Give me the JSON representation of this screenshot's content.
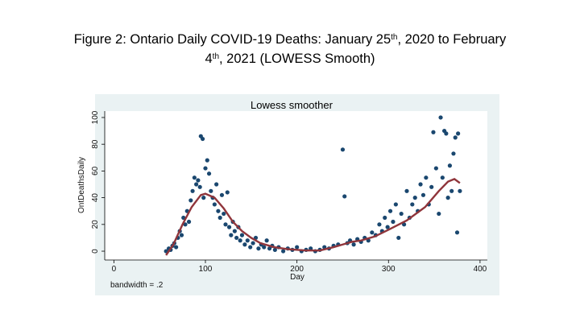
{
  "slide_title": {
    "lines": [
      [
        {
          "text": "Figure 2: Ontario Daily COVID-19 Deaths: January 25",
          "sup": false
        },
        {
          "text": "th",
          "sup": true
        },
        {
          "text": ", 2020 to February",
          "sup": false
        }
      ],
      [
        {
          "text": "4",
          "sup": false
        },
        {
          "text": "th",
          "sup": true
        },
        {
          "text": ", 2021 (LOWESS Smooth)",
          "sup": false
        }
      ]
    ]
  },
  "chart_data": {
    "type": "scatter",
    "title": "Lowess smoother",
    "xlabel": "Day",
    "ylabel": "OntDeathsDaily",
    "note": "bandwidth = .2",
    "color": "#1a476f",
    "x": [
      57,
      60,
      62,
      64,
      66,
      68,
      70,
      72,
      74,
      76,
      78,
      80,
      82,
      84,
      86,
      88,
      90,
      92,
      94,
      95,
      97,
      98,
      100,
      102,
      104,
      106,
      108,
      110,
      112,
      114,
      116,
      118,
      120,
      122,
      124,
      126,
      128,
      130,
      132,
      134,
      136,
      138,
      140,
      143,
      146,
      149,
      152,
      155,
      158,
      161,
      164,
      167,
      170,
      173,
      176,
      180,
      185,
      190,
      195,
      200,
      205,
      210,
      215,
      220,
      225,
      230,
      235,
      240,
      245,
      250,
      252,
      255,
      258,
      262,
      266,
      270,
      274,
      278,
      282,
      286,
      290,
      293,
      296,
      299,
      302,
      305,
      308,
      311,
      314,
      317,
      320,
      323,
      326,
      329,
      332,
      335,
      338,
      341,
      344,
      347,
      349,
      352,
      355,
      357,
      359,
      361,
      363,
      365,
      367,
      369,
      371,
      373,
      375,
      376,
      378
    ],
    "values": [
      0,
      2,
      1,
      4,
      6,
      3,
      10,
      15,
      12,
      25,
      20,
      30,
      22,
      38,
      45,
      55,
      50,
      53,
      48,
      86,
      84,
      40,
      62,
      68,
      58,
      45,
      40,
      35,
      50,
      30,
      25,
      42,
      28,
      20,
      44,
      18,
      12,
      22,
      15,
      10,
      18,
      8,
      12,
      5,
      8,
      3,
      6,
      10,
      2,
      5,
      3,
      8,
      2,
      4,
      1,
      3,
      0,
      2,
      1,
      3,
      0,
      1,
      2,
      0,
      1,
      3,
      2,
      4,
      5,
      76,
      41,
      6,
      8,
      5,
      9,
      7,
      10,
      8,
      14,
      12,
      20,
      15,
      25,
      18,
      30,
      22,
      35,
      10,
      28,
      20,
      45,
      25,
      35,
      40,
      30,
      50,
      42,
      55,
      35,
      48,
      89,
      62,
      28,
      100,
      55,
      90,
      88,
      40,
      64,
      45,
      73,
      85,
      14,
      88,
      45
    ],
    "line": {
      "color": "#90353b",
      "x": [
        57,
        65,
        75,
        85,
        95,
        100,
        110,
        120,
        130,
        140,
        150,
        160,
        175,
        190,
        210,
        225,
        240,
        250,
        260,
        270,
        285,
        300,
        320,
        340,
        355,
        365,
        372,
        378
      ],
      "values": [
        -3,
        5,
        20,
        33,
        42,
        43,
        40,
        32,
        22,
        15,
        10,
        6,
        3,
        1.5,
        0.5,
        0.5,
        3,
        5,
        7,
        8,
        11,
        16,
        23,
        33,
        45,
        52,
        54,
        51
      ]
    },
    "xlim": [
      -10,
      408
    ],
    "ylim": [
      -6.6,
      104.8
    ],
    "xticks": [
      0,
      100,
      200,
      300,
      400
    ],
    "yticks": [
      0,
      20,
      40,
      60,
      80,
      100
    ],
    "grid": false
  }
}
